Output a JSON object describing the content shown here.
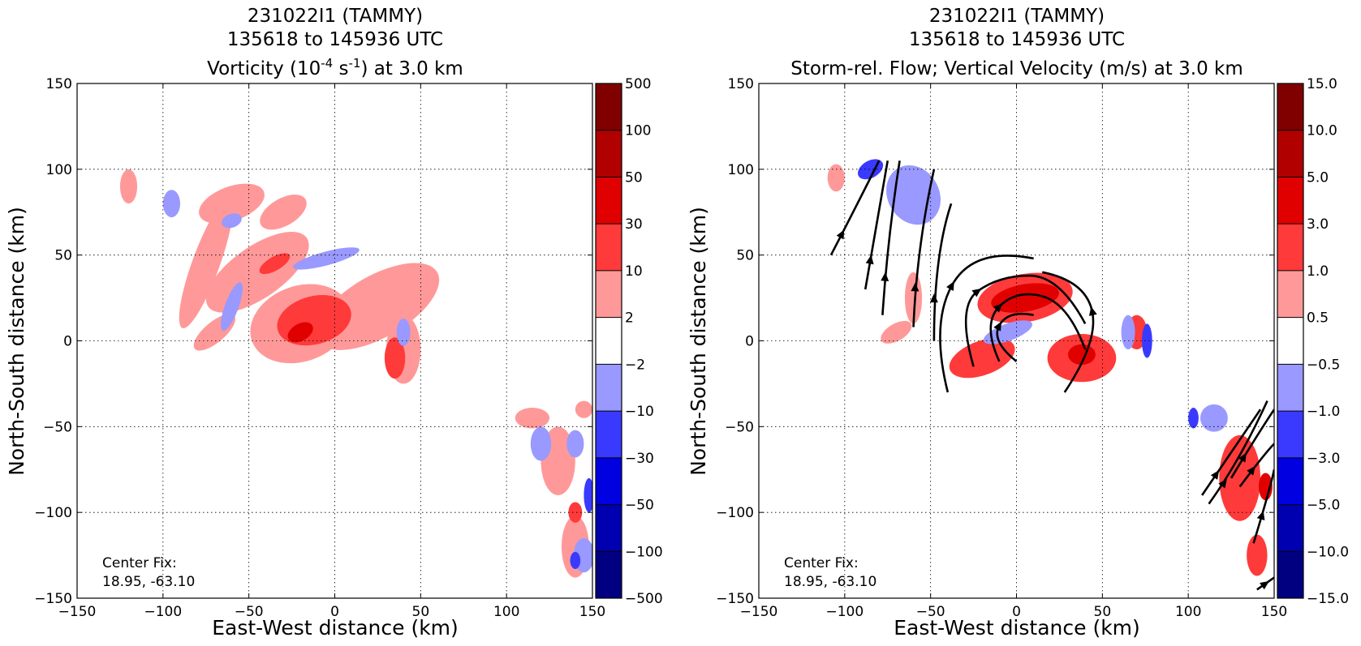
{
  "chart_data": [
    {
      "type": "heatmap",
      "title_lines": [
        "231022I1 (TAMMY)",
        "135618 to 145936 UTC"
      ],
      "title_third": {
        "prefix": "Vorticity (10",
        "sup1": "-4",
        "middle": " s",
        "sup2": "-1",
        "suffix": ") at 3.0 km"
      },
      "xlabel": "East-West distance (km)",
      "ylabel": "North-South distance (km)",
      "xlim": [
        -150,
        150
      ],
      "ylim": [
        -150,
        150
      ],
      "x_ticks": [
        "−150",
        "−100",
        "−50",
        "0",
        "50",
        "100",
        "150"
      ],
      "y_ticks": [
        "150",
        "100",
        "50",
        "0",
        "−50",
        "−100",
        "−150"
      ],
      "grid": true,
      "colorbar": {
        "labels": [
          "500",
          "100",
          "50",
          "30",
          "10",
          "2",
          "−2",
          "−10",
          "−30",
          "−50",
          "−100",
          "−500"
        ],
        "colors": [
          "#800000",
          "#b00000",
          "#e00000",
          "#ff3a3a",
          "#ff9999",
          "#ffffff",
          "#9999ff",
          "#3a3aff",
          "#0000e0",
          "#0000b0",
          "#000080"
        ]
      },
      "annotation_lines": [
        "Center Fix:",
        "18.95, -63.10"
      ],
      "patches": [
        {
          "level": "+2",
          "x": -20,
          "y": 10,
          "rx": 30,
          "ry": 22,
          "rot": -20
        },
        {
          "level": "+2",
          "x": 25,
          "y": 20,
          "rx": 40,
          "ry": 18,
          "rot": -30
        },
        {
          "level": "+2",
          "x": -45,
          "y": 40,
          "rx": 35,
          "ry": 15,
          "rot": -35
        },
        {
          "level": "+2",
          "x": -75,
          "y": 45,
          "rx": 8,
          "ry": 40,
          "rot": 20
        },
        {
          "level": "+2",
          "x": -60,
          "y": 80,
          "rx": 20,
          "ry": 10,
          "rot": -20
        },
        {
          "level": "+2",
          "x": -30,
          "y": 75,
          "rx": 15,
          "ry": 8,
          "rot": -30
        },
        {
          "level": "+2",
          "x": 40,
          "y": -5,
          "rx": 10,
          "ry": 20,
          "rot": 0
        },
        {
          "level": "+2",
          "x": -70,
          "y": 5,
          "rx": 15,
          "ry": 6,
          "rot": -40
        },
        {
          "level": "+2",
          "x": -120,
          "y": 90,
          "rx": 5,
          "ry": 10,
          "rot": 0
        },
        {
          "level": "+10",
          "x": -12,
          "y": 12,
          "rx": 22,
          "ry": 14,
          "rot": -15
        },
        {
          "level": "+10",
          "x": 35,
          "y": -10,
          "rx": 6,
          "ry": 12,
          "rot": 0
        },
        {
          "level": "+10",
          "x": -35,
          "y": 45,
          "rx": 10,
          "ry": 4,
          "rot": -30
        },
        {
          "level": "+30",
          "x": -20,
          "y": 5,
          "rx": 8,
          "ry": 5,
          "rot": -30
        },
        {
          "level": "-2",
          "x": -95,
          "y": 80,
          "rx": 5,
          "ry": 8,
          "rot": 0
        },
        {
          "level": "-2",
          "x": -60,
          "y": 20,
          "rx": 4,
          "ry": 15,
          "rot": 20
        },
        {
          "level": "-2",
          "x": -60,
          "y": 70,
          "rx": 6,
          "ry": 4,
          "rot": -20
        },
        {
          "level": "-2",
          "x": -5,
          "y": 48,
          "rx": 20,
          "ry": 4,
          "rot": -15
        },
        {
          "level": "-2",
          "x": 40,
          "y": 5,
          "rx": 4,
          "ry": 8,
          "rot": 0
        },
        {
          "level": "+2",
          "x": 130,
          "y": -70,
          "rx": 10,
          "ry": 20,
          "rot": 0
        },
        {
          "level": "+2",
          "x": 140,
          "y": -120,
          "rx": 8,
          "ry": 18,
          "rot": 0
        },
        {
          "level": "+2",
          "x": 115,
          "y": -45,
          "rx": 10,
          "ry": 6,
          "rot": 0
        },
        {
          "level": "+2",
          "x": 145,
          "y": -40,
          "rx": 5,
          "ry": 5,
          "rot": 0
        },
        {
          "level": "+10",
          "x": 140,
          "y": -100,
          "rx": 4,
          "ry": 6,
          "rot": 0
        },
        {
          "level": "-2",
          "x": 120,
          "y": -60,
          "rx": 6,
          "ry": 10,
          "rot": 0
        },
        {
          "level": "-2",
          "x": 140,
          "y": -60,
          "rx": 5,
          "ry": 8,
          "rot": 0
        },
        {
          "level": "-2",
          "x": 145,
          "y": -125,
          "rx": 6,
          "ry": 10,
          "rot": 0
        },
        {
          "level": "-10",
          "x": 148,
          "y": -90,
          "rx": 3,
          "ry": 10,
          "rot": 0
        },
        {
          "level": "-10",
          "x": 140,
          "y": -128,
          "rx": 3,
          "ry": 5,
          "rot": 0
        }
      ]
    },
    {
      "type": "heatmap",
      "title_lines": [
        "231022I1 (TAMMY)",
        "135618 to 145936 UTC",
        "Storm-rel. Flow; Vertical Velocity (m/s) at 3.0 km"
      ],
      "xlabel": "East-West distance (km)",
      "ylabel": "North-South distance (km)",
      "xlim": [
        -150,
        150
      ],
      "ylim": [
        -150,
        150
      ],
      "x_ticks": [
        "−150",
        "−100",
        "−50",
        "0",
        "50",
        "100",
        "150"
      ],
      "y_ticks": [
        "150",
        "100",
        "50",
        "0",
        "−50",
        "−100",
        "−150"
      ],
      "grid": true,
      "colorbar": {
        "labels": [
          "15.0",
          "10.0",
          "5.0",
          "3.0",
          "1.0",
          "0.5",
          "−0.5",
          "−1.0",
          "−3.0",
          "−5.0",
          "−10.0",
          "−15.0"
        ],
        "colors": [
          "#800000",
          "#b00000",
          "#e00000",
          "#ff3a3a",
          "#ff9999",
          "#ffffff",
          "#9999ff",
          "#3a3aff",
          "#0000e0",
          "#0000b0",
          "#000080"
        ]
      },
      "annotation_lines": [
        "Center Fix:",
        "18.95, -63.10"
      ],
      "patches": [
        {
          "level": "+1.0",
          "x": 5,
          "y": 25,
          "rx": 28,
          "ry": 14,
          "rot": -10
        },
        {
          "level": "+1.0",
          "x": 38,
          "y": -10,
          "rx": 20,
          "ry": 14,
          "rot": 0
        },
        {
          "level": "+1.0",
          "x": -20,
          "y": -10,
          "rx": 20,
          "ry": 10,
          "rot": -20
        },
        {
          "level": "+1.0",
          "x": 70,
          "y": 5,
          "rx": 6,
          "ry": 10,
          "rot": 0
        },
        {
          "level": "+3.0",
          "x": 5,
          "y": 25,
          "rx": 20,
          "ry": 8,
          "rot": -10
        },
        {
          "level": "+3.0",
          "x": 38,
          "y": -8,
          "rx": 8,
          "ry": 6,
          "rot": 0
        },
        {
          "level": "+0.5",
          "x": -60,
          "y": 25,
          "rx": 5,
          "ry": 15,
          "rot": 0
        },
        {
          "level": "+0.5",
          "x": -105,
          "y": 95,
          "rx": 5,
          "ry": 8,
          "rot": 0
        },
        {
          "level": "+0.5",
          "x": -70,
          "y": 5,
          "rx": 10,
          "ry": 5,
          "rot": -30
        },
        {
          "level": "-0.5",
          "x": -60,
          "y": 85,
          "rx": 15,
          "ry": 18,
          "rot": -30
        },
        {
          "level": "-0.5",
          "x": -5,
          "y": 5,
          "rx": 15,
          "ry": 5,
          "rot": -20
        },
        {
          "level": "-0.5",
          "x": 65,
          "y": 5,
          "rx": 4,
          "ry": 10,
          "rot": 0
        },
        {
          "level": "-1.0",
          "x": -85,
          "y": 100,
          "rx": 8,
          "ry": 5,
          "rot": -30
        },
        {
          "level": "-1.0",
          "x": 76,
          "y": 0,
          "rx": 3,
          "ry": 10,
          "rot": 0
        },
        {
          "level": "+1.0",
          "x": 130,
          "y": -80,
          "rx": 12,
          "ry": 25,
          "rot": 0
        },
        {
          "level": "+1.0",
          "x": 140,
          "y": -125,
          "rx": 6,
          "ry": 12,
          "rot": 0
        },
        {
          "level": "+3.0",
          "x": 145,
          "y": -85,
          "rx": 4,
          "ry": 8,
          "rot": 0
        },
        {
          "level": "-0.5",
          "x": 115,
          "y": -45,
          "rx": 8,
          "ry": 8,
          "rot": 0
        },
        {
          "level": "-1.0",
          "x": 103,
          "y": -45,
          "rx": 3,
          "ry": 6,
          "rot": 0
        }
      ],
      "streamlines": [
        [
          [
            -108,
            50
          ],
          [
            -95,
            75
          ],
          [
            -80,
            105
          ]
        ],
        [
          [
            -88,
            30
          ],
          [
            -82,
            65
          ],
          [
            -75,
            105
          ]
        ],
        [
          [
            -78,
            15
          ],
          [
            -75,
            60
          ],
          [
            -68,
            105
          ]
        ],
        [
          [
            -60,
            8
          ],
          [
            -58,
            55
          ],
          [
            -48,
            100
          ]
        ],
        [
          [
            -48,
            0
          ],
          [
            -48,
            50
          ],
          [
            -38,
            80
          ]
        ],
        [
          [
            -40,
            -30
          ],
          [
            -50,
            10
          ],
          [
            -25,
            55
          ],
          [
            10,
            48
          ]
        ],
        [
          [
            -25,
            -15
          ],
          [
            -35,
            20
          ],
          [
            -10,
            38
          ],
          [
            25,
            38
          ],
          [
            40,
            10
          ]
        ],
        [
          [
            -10,
            -12
          ],
          [
            -20,
            10
          ],
          [
            0,
            30
          ],
          [
            30,
            22
          ],
          [
            40,
            -5
          ]
        ],
        [
          [
            0,
            -12
          ],
          [
            -15,
            0
          ],
          [
            -5,
            18
          ],
          [
            10,
            15
          ]
        ],
        [
          [
            28,
            -30
          ],
          [
            48,
            0
          ],
          [
            40,
            35
          ],
          [
            15,
            40
          ]
        ],
        [
          [
            108,
            -90
          ],
          [
            125,
            -65
          ],
          [
            142,
            -40
          ]
        ],
        [
          [
            112,
            -95
          ],
          [
            130,
            -70
          ],
          [
            146,
            -35
          ]
        ],
        [
          [
            125,
            -80
          ],
          [
            140,
            -55
          ],
          [
            150,
            -40
          ]
        ],
        [
          [
            130,
            -85
          ],
          [
            145,
            -65
          ],
          [
            150,
            -60
          ]
        ],
        [
          [
            138,
            -118
          ],
          [
            148,
            -85
          ],
          [
            150,
            -75
          ]
        ],
        [
          [
            140,
            -145
          ],
          [
            150,
            -138
          ]
        ]
      ]
    }
  ]
}
